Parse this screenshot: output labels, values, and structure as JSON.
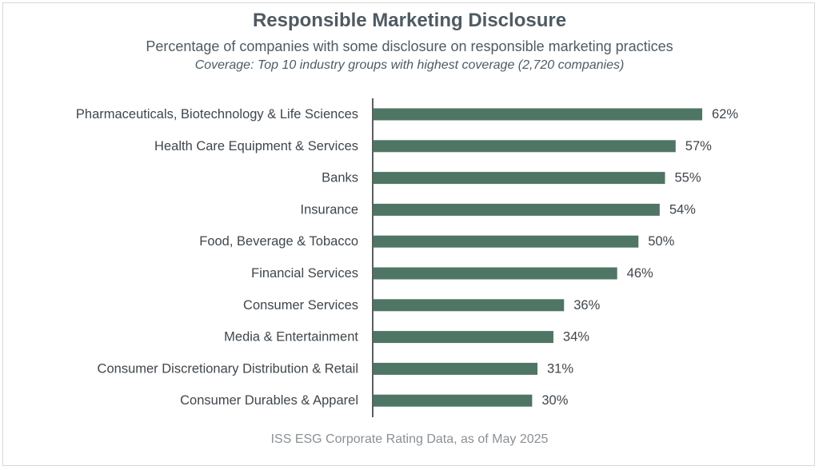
{
  "chart_data": {
    "type": "bar",
    "orientation": "horizontal",
    "title": "Responsible Marketing Disclosure",
    "subtitle": "Percentage of companies with some disclosure on responsible marketing practices",
    "coverage_note": "Coverage: Top 10 industry groups with highest coverage (2,720 companies)",
    "source": "ISS ESG Corporate Rating Data, as of May 2025",
    "categories": [
      "Pharmaceuticals, Biotechnology & Life Sciences",
      "Health Care Equipment & Services",
      "Banks",
      "Insurance",
      "Food, Beverage & Tobacco",
      "Financial Services",
      "Consumer Services",
      "Media & Entertainment",
      "Consumer Discretionary Distribution & Retail",
      "Consumer Durables & Apparel"
    ],
    "values": [
      62,
      57,
      55,
      54,
      50,
      46,
      36,
      34,
      31,
      30
    ],
    "value_labels": [
      "62%",
      "57%",
      "55%",
      "54%",
      "50%",
      "46%",
      "36%",
      "34%",
      "31%",
      "30%"
    ],
    "unit": "%",
    "xlim": [
      0,
      100
    ],
    "grid": false,
    "legend": "none",
    "colors": {
      "bar": "#4f7565",
      "axis": "#5b5f62",
      "text": "#3f464c",
      "title": "#4f5a63",
      "source": "#8b9094"
    }
  }
}
